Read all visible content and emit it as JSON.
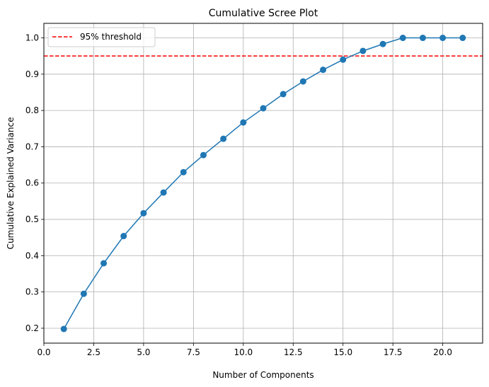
{
  "chart_data": {
    "type": "line",
    "title": "Cumulative Scree Plot",
    "xlabel": "Number of Components",
    "ylabel": "Cumulative Explained Variance",
    "xlim": [
      0,
      22.0
    ],
    "ylim": [
      0.159,
      1.04
    ],
    "xticks": [
      0.0,
      2.5,
      5.0,
      7.5,
      10.0,
      12.5,
      15.0,
      17.5,
      20.0
    ],
    "xtick_labels": [
      "0.0",
      "2.5",
      "5.0",
      "7.5",
      "10.0",
      "12.5",
      "15.0",
      "17.5",
      "20.0"
    ],
    "yticks": [
      0.2,
      0.3,
      0.4,
      0.5,
      0.6,
      0.7,
      0.8,
      0.9,
      1.0
    ],
    "ytick_labels": [
      "0.2",
      "0.3",
      "0.4",
      "0.5",
      "0.6",
      "0.7",
      "0.8",
      "0.9",
      "1.0"
    ],
    "grid": true,
    "legend_position": "top-left",
    "series": [
      {
        "color": "#1f77b4",
        "marker": "circle",
        "x": [
          1,
          2,
          3,
          4,
          5,
          6,
          7,
          8,
          9,
          10,
          11,
          12,
          13,
          14,
          15,
          16,
          17,
          18,
          19,
          20,
          21
        ],
        "y": [
          0.198,
          0.295,
          0.379,
          0.454,
          0.517,
          0.574,
          0.63,
          0.677,
          0.722,
          0.767,
          0.806,
          0.845,
          0.88,
          0.912,
          0.94,
          0.964,
          0.983,
          1.0,
          1.0,
          1.0,
          1.0
        ]
      }
    ],
    "threshold": {
      "name": "95% threshold",
      "y": 0.95,
      "color": "#ff0000",
      "style": "dashed"
    }
  }
}
